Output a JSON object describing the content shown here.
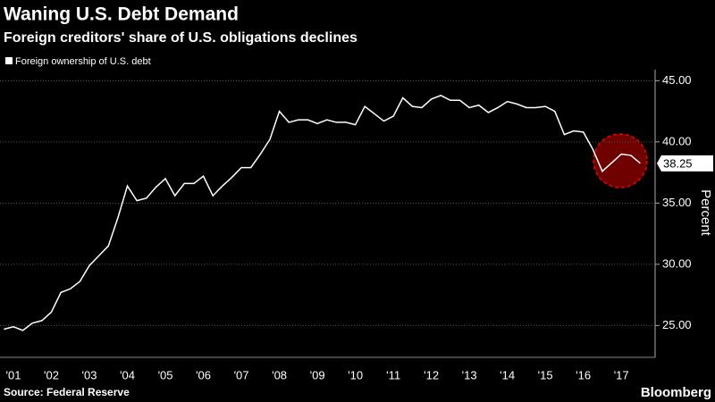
{
  "chart_data": {
    "type": "line",
    "title": "Waning U.S. Debt Demand",
    "subtitle": "Foreign creditors' share of U.S. obligations declines",
    "y_label": "Percent",
    "source": "Source: Federal Reserve",
    "brand": "Bloomberg",
    "x": [
      2001.25,
      2001.5,
      2001.75,
      2002,
      2002.25,
      2002.5,
      2002.75,
      2003,
      2003.25,
      2003.5,
      2003.75,
      2004,
      2004.25,
      2004.5,
      2004.75,
      2005,
      2005.25,
      2005.5,
      2005.75,
      2006,
      2006.25,
      2006.5,
      2006.75,
      2007,
      2007.25,
      2007.5,
      2007.75,
      2008,
      2008.25,
      2008.5,
      2008.75,
      2009,
      2009.25,
      2009.5,
      2009.75,
      2010,
      2010.25,
      2010.5,
      2010.75,
      2011,
      2011.25,
      2011.5,
      2011.75,
      2012,
      2012.25,
      2012.5,
      2012.75,
      2013,
      2013.25,
      2013.5,
      2013.75,
      2014,
      2014.25,
      2014.5,
      2014.75,
      2015,
      2015.25,
      2015.5,
      2015.75,
      2016,
      2016.25,
      2016.5,
      2016.75,
      2017,
      2017.25,
      2017.5,
      2017.75,
      2018
    ],
    "series": [
      {
        "name": "Foreign ownership of U.S. debt",
        "color": "#ffffff",
        "values": [
          24.7,
          24.9,
          24.6,
          25.2,
          25.4,
          26.1,
          27.7,
          28.0,
          28.6,
          29.9,
          30.7,
          31.5,
          33.8,
          36.4,
          35.2,
          35.4,
          36.3,
          37.0,
          35.6,
          36.6,
          36.6,
          37.2,
          35.6,
          36.4,
          37.1,
          37.9,
          37.9,
          39.0,
          40.2,
          42.5,
          41.6,
          41.8,
          41.8,
          41.5,
          41.8,
          41.6,
          41.6,
          41.4,
          42.9,
          42.3,
          41.7,
          42.1,
          43.6,
          42.9,
          42.8,
          43.5,
          43.8,
          43.4,
          43.4,
          42.8,
          43.0,
          42.4,
          42.8,
          43.3,
          43.1,
          42.8,
          42.8,
          42.9,
          42.5,
          40.6,
          40.9,
          40.8,
          39.4,
          37.6,
          38.3,
          39.0,
          38.9,
          38.25
        ],
        "value_labels": [
          null,
          null,
          null,
          null,
          null,
          null,
          null,
          null,
          null,
          null,
          null,
          null,
          null,
          null,
          null,
          null,
          null,
          null,
          null,
          null,
          null,
          null,
          null,
          null,
          null,
          null,
          null,
          null,
          null,
          null,
          null,
          null,
          null,
          null,
          null,
          null,
          null,
          null,
          null,
          null,
          null,
          null,
          null,
          null,
          null,
          null,
          null,
          null,
          null,
          null,
          null,
          null,
          null,
          null,
          null,
          null,
          null,
          null,
          null,
          null,
          null,
          null,
          null,
          null,
          null,
          null,
          null,
          "38.25"
        ]
      }
    ],
    "xlim": [
      2001.147,
      2018.39
    ],
    "xticks": [
      {
        "value": 2001.5,
        "label": "'01"
      },
      {
        "value": 2002.5,
        "label": "'02"
      },
      {
        "value": 2003.5,
        "label": "'03"
      },
      {
        "value": 2004.5,
        "label": "'04"
      },
      {
        "value": 2005.5,
        "label": "'05"
      },
      {
        "value": 2006.5,
        "label": "'06"
      },
      {
        "value": 2007.5,
        "label": "'07"
      },
      {
        "value": 2008.5,
        "label": "'08"
      },
      {
        "value": 2009.5,
        "label": "'09"
      },
      {
        "value": 2010.5,
        "label": "'10"
      },
      {
        "value": 2011.5,
        "label": "'11"
      },
      {
        "value": 2012.5,
        "label": "'12"
      },
      {
        "value": 2013.5,
        "label": "'13"
      },
      {
        "value": 2014.5,
        "label": "'14"
      },
      {
        "value": 2015.5,
        "label": "'15"
      },
      {
        "value": 2016.5,
        "label": "'16"
      },
      {
        "value": 2017.5,
        "label": "'17"
      }
    ],
    "ylim": [
      22.4,
      45.9
    ],
    "yticks": [
      {
        "value": 25,
        "label": "25.00"
      },
      {
        "value": 30,
        "label": "30.00"
      },
      {
        "value": 35,
        "label": "35.00"
      },
      {
        "value": 40,
        "label": "40.00"
      },
      {
        "value": 45,
        "label": "45.00"
      }
    ],
    "grid": true
  }
}
